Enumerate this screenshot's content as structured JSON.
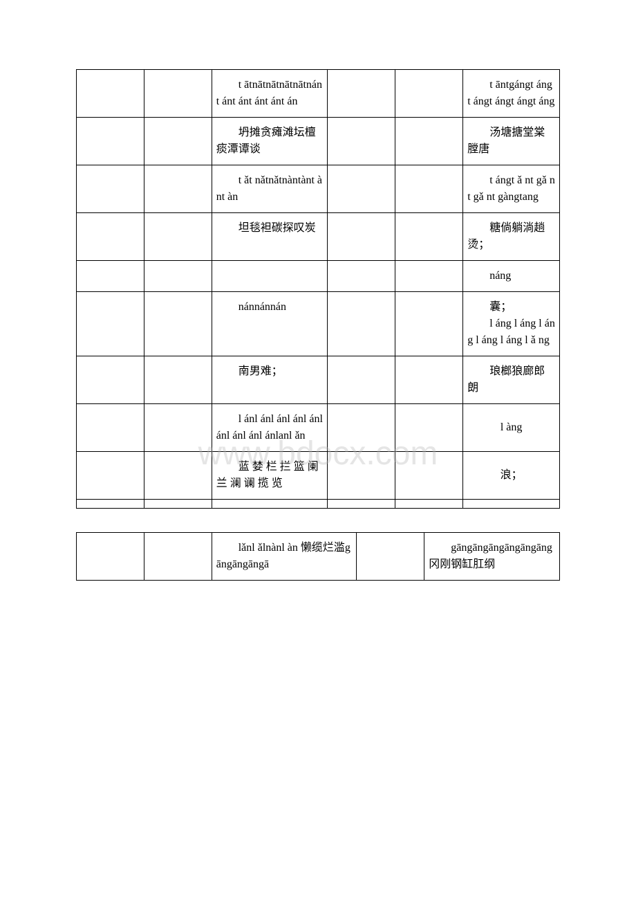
{
  "watermark": "www.bdocx.com",
  "table1": {
    "col_widths": [
      "14%",
      "14%",
      "24%",
      "14%",
      "14%",
      "20%"
    ],
    "rows": [
      {
        "c2": "　　t ātnātnātnātnātnánt ánt ánt ánt ánt án",
        "c5": "　　t āntgángt ángt ángt ángt ángt áng"
      },
      {
        "c2": "　　坍摊贪瘫滩坛檀痰潭谭谈",
        "c5": "　　汤塘搪堂棠膛唐"
      },
      {
        "c2": "　　t ǎt nǎtnǎtnàntànt ànt àn",
        "c5": "　　t ángt ǎ nt gǎ nt gǎ nt gàngtang"
      },
      {
        "c2": "　　坦毯袒碳探叹炭",
        "c5": "　　糖倘躺淌趟烫；"
      },
      {
        "c2": "",
        "c5": "　　náng"
      },
      {
        "c2": "　　nánnánnán",
        "c5": "　　囊；\n　　l áng l áng l áng l áng l áng l ǎ ng"
      },
      {
        "c2": "　　南男难；",
        "c5": "　　琅榔狼廊郎朗"
      },
      {
        "c2": "　　l ánl ánl ánl ánl ánl ánl ánl ánl ánlanl ǎn",
        "c5": "l àng"
      },
      {
        "c2": "　　蓝 婪 栏 拦 篮 阑 兰 澜 谰 揽 览",
        "c5": "浪；"
      },
      {
        "c2": "",
        "c5": ""
      }
    ]
  },
  "table2": {
    "col_widths": [
      "14%",
      "14%",
      "30%",
      "14%",
      "28%"
    ],
    "rows": [
      {
        "c2": "　　lǎnl ǎlnànl àn 懒缆烂滥gāngāngāngā",
        "c4": "　　gāngāngāngāngāngāng 冈刚钢缸肛纲"
      }
    ]
  }
}
